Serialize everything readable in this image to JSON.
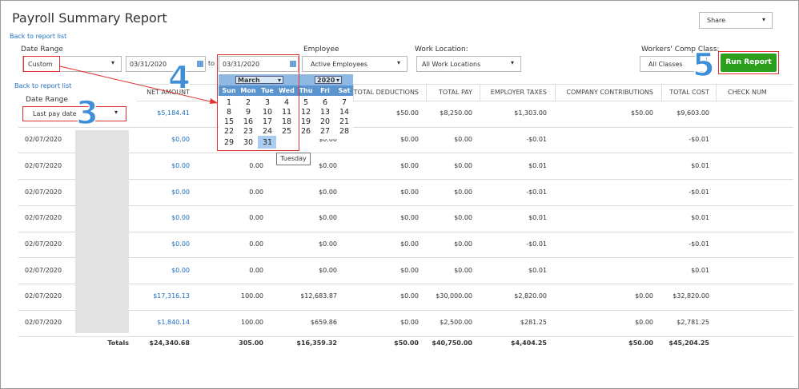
{
  "header": {
    "title": "Payroll Summary Report",
    "back_link": "Back to report list",
    "share": "Share"
  },
  "filters": {
    "date_range_label": "Date Range",
    "date_range": "Custom",
    "from_date": "03/31/2020",
    "to_label": "to",
    "to_date": "03/31/2020",
    "employee_label": "Employee",
    "employee": "Active Employees",
    "work_location_label": "Work Location:",
    "work_location": "All Work Locations",
    "comp_class_label": "Workers' Comp Class:",
    "comp_class": "All Classes",
    "run_button": "Run Report"
  },
  "callouts": [
    "3",
    "4",
    "5"
  ],
  "side_panel": {
    "back_link": "Back to report list",
    "date_range_label": "Date Range",
    "date_range": "Last pay date"
  },
  "calendar": {
    "month": "March",
    "year": "2020",
    "weekdays": [
      "Sun",
      "Mon",
      "Tue",
      "Wed",
      "Thu",
      "Fri",
      "Sat"
    ],
    "weeks": [
      [
        1,
        2,
        3,
        4,
        5,
        6,
        7
      ],
      [
        8,
        9,
        10,
        11,
        12,
        13,
        14
      ],
      [
        15,
        16,
        17,
        18,
        19,
        20,
        21
      ],
      [
        22,
        23,
        24,
        25,
        26,
        27,
        28
      ],
      [
        29,
        30,
        31
      ]
    ],
    "tooltip": "Tuesday"
  },
  "table": {
    "headers": [
      null,
      null,
      "NET AMOUNT",
      null,
      null,
      "TOTAL DEDUCTIONS",
      "TOTAL PAY",
      "EMPLOYER TAXES",
      "COMPANY CONTRIBUTIONS",
      "TOTAL COST",
      "CHECK NUM"
    ],
    "rows": [
      [
        null,
        null,
        "$5,184.41",
        null,
        null,
        "$50.00",
        "$8,250.00",
        "$1,303.00",
        "$50.00",
        "$9,603.00",
        null
      ],
      [
        "02/07/2020",
        null,
        "$0.00",
        null,
        "$0.00",
        "$0.00",
        "$0.00",
        "-$0.01",
        null,
        "-$0.01",
        null
      ],
      [
        "02/07/2020",
        null,
        "$0.00",
        "0.00",
        "$0.00",
        "$0.00",
        "$0.00",
        "$0.01",
        null,
        "$0.01",
        null
      ],
      [
        "02/07/2020",
        null,
        "$0.00",
        "0.00",
        "$0.00",
        "$0.00",
        "$0.00",
        "-$0.01",
        null,
        "-$0.01",
        null
      ],
      [
        "02/07/2020",
        null,
        "$0.00",
        "0.00",
        "$0.00",
        "$0.00",
        "$0.00",
        "$0.01",
        null,
        "$0.01",
        null
      ],
      [
        "02/07/2020",
        null,
        "$0.00",
        "0.00",
        "$0.00",
        "$0.00",
        "$0.00",
        "-$0.01",
        null,
        "-$0.01",
        null
      ],
      [
        "02/07/2020",
        null,
        "$0.00",
        "0.00",
        "$0.00",
        "$0.00",
        "$0.00",
        "$0.01",
        null,
        "$0.01",
        null
      ],
      [
        "02/07/2020",
        null,
        "$17,316.13",
        "100.00",
        "$12,683.87",
        "$0.00",
        "$30,000.00",
        "$2,820.00",
        "$0.00",
        "$32,820.00",
        null
      ],
      [
        "02/07/2020",
        null,
        "$1,840.14",
        "100.00",
        "$659.86",
        "$0.00",
        "$2,500.00",
        "$281.25",
        "$0.00",
        "$2,781.25",
        null
      ]
    ],
    "totals": [
      null,
      "Totals",
      "$24,340.68",
      "305.00",
      "$16,359.32",
      "$50.00",
      "$40,750.00",
      "$4,404.25",
      "$50.00",
      "$45,204.25",
      null
    ]
  }
}
